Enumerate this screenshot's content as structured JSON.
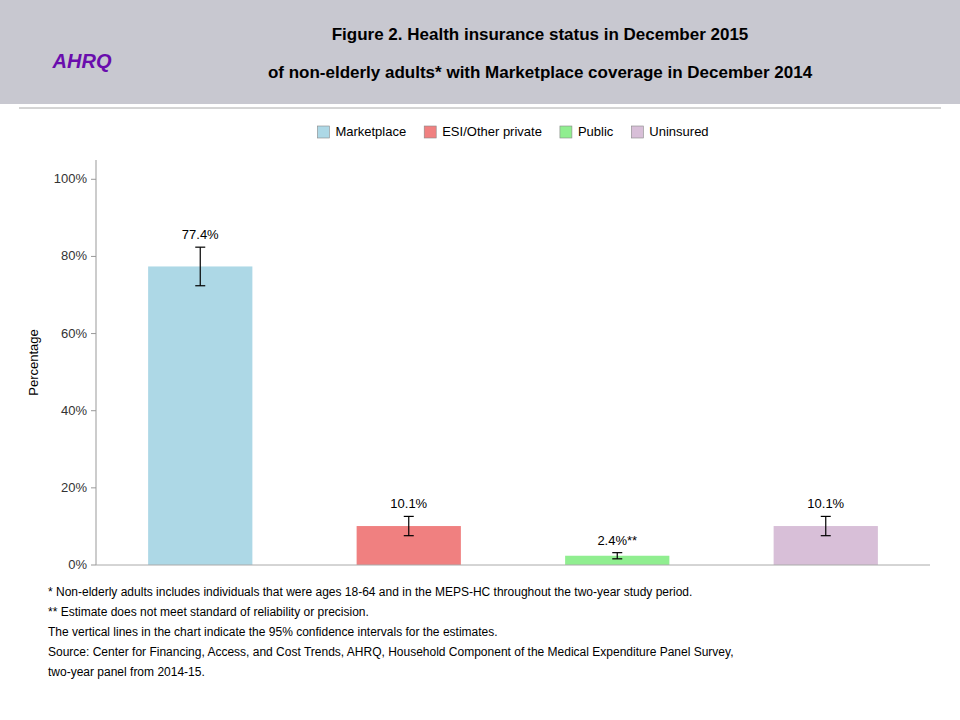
{
  "chart_data": {
    "type": "bar",
    "title": "Figure 2. Health insurance status in December 2015",
    "subtitle": "of non-elderly adults* with Marketplace coverage in December 2014",
    "categories": [
      "Marketplace",
      "ESI/Other private",
      "Public",
      "Uninsured"
    ],
    "values": [
      77.4,
      10.1,
      2.4,
      10.1
    ],
    "value_labels": [
      "77.4%",
      "10.1%",
      "2.4%**",
      "10.1%"
    ],
    "errors": [
      5.0,
      2.5,
      0.8,
      2.5
    ],
    "colors": [
      "#add8e6",
      "#f08080",
      "#90ee90",
      "#d8bfd8"
    ],
    "y_label": "Percentage",
    "ylim": [
      0,
      105
    ],
    "yticks": [
      {
        "value": 0,
        "label": "0%"
      },
      {
        "value": 20,
        "label": "20%"
      },
      {
        "value": 40,
        "label": "40%"
      },
      {
        "value": 60,
        "label": "60%"
      },
      {
        "value": 80,
        "label": "80%"
      },
      {
        "value": 100,
        "label": "100%"
      }
    ],
    "grid": false,
    "legend": "top",
    "data_labels": true,
    "tick_labels": "y",
    "annotations": [
      "AHRQ",
      "* Non-elderly adults includes individuals that were ages 18-64 and in the MEPS-HC throughout the two-year study period.",
      "** Estimate does not meet standard of reliability or precision.",
      "The vertical lines in the chart indicate the 95% confidence intervals for the estimates.",
      "Source: Center for Financing, Access, and Cost Trends, AHRQ, Household Component of the Medical Expenditure Panel Survey,",
      "two-year panel from 2014-15."
    ]
  }
}
